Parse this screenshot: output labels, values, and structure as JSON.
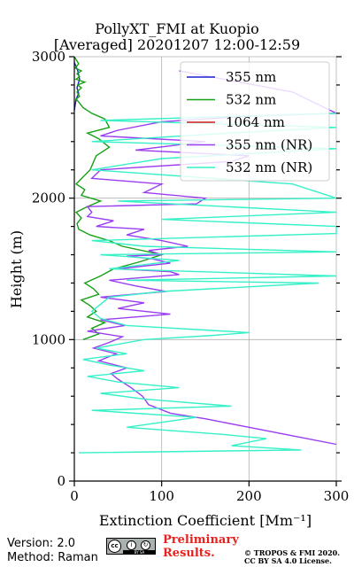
{
  "title": {
    "line1": "PollyXT_FMI at Kuopio",
    "line2": "[Averaged] 20201207 12:00-12:59"
  },
  "footer": {
    "version": "Version: 2.0",
    "method": "Method: Raman",
    "preliminary": [
      "Preliminary",
      "Results."
    ],
    "copyright": [
      "© TROPOS & FMI 2020.",
      "CC BY SA 4.0 License."
    ],
    "license_logo": "cc-by-sa-logo",
    "license_logo_text": "BY   SA",
    "preliminary_color": "#e8211e"
  },
  "chart_data": {
    "type": "line",
    "xlabel": "Extinction Coefficient [Mm⁻¹]",
    "ylabel": "Height (m)",
    "xlim": [
      0,
      300
    ],
    "ylim": [
      0,
      3000
    ],
    "xticks": [
      0,
      100,
      200,
      300
    ],
    "yticks": [
      0,
      1000,
      2000,
      3000
    ],
    "grid": true,
    "legend_position": "top-right",
    "series": [
      {
        "name": "355 nm",
        "color": "#1f1fd2",
        "x": [
          0,
          2,
          5,
          3,
          6,
          4,
          0
        ],
        "y": [
          2620,
          2700,
          2740,
          2780,
          2840,
          2900,
          2960
        ]
      },
      {
        "name": "532 nm",
        "color": "#16a016",
        "x": [
          10,
          28,
          20,
          35,
          15,
          25,
          18,
          8,
          28,
          22,
          12,
          30,
          45,
          75,
          100,
          55,
          40,
          18,
          5,
          3,
          8,
          2,
          15,
          30,
          8,
          12,
          2,
          18,
          25,
          40,
          28,
          15,
          40,
          35,
          20,
          10,
          5,
          2,
          6,
          3,
          8,
          4,
          12,
          2,
          6,
          3,
          8,
          1,
          5,
          0
        ],
        "y": [
          1000,
          1040,
          1080,
          1120,
          1160,
          1200,
          1240,
          1280,
          1320,
          1360,
          1400,
          1450,
          1500,
          1550,
          1600,
          1660,
          1700,
          1740,
          1780,
          1820,
          1860,
          1900,
          1940,
          1980,
          2020,
          2060,
          2100,
          2200,
          2300,
          2360,
          2420,
          2460,
          2500,
          2560,
          2600,
          2640,
          2680,
          2700,
          2720,
          2750,
          2780,
          2800,
          2820,
          2840,
          2860,
          2880,
          2900,
          2920,
          2950,
          3000
        ]
      },
      {
        "name": "1064 nm",
        "color": "#cc1c1c",
        "x": [],
        "y": []
      },
      {
        "name": "355 nm (NR)",
        "color": "#9a3cf0",
        "x": [
          300,
          250,
          200,
          150,
          110,
          85,
          78,
          65,
          50,
          42,
          60,
          28,
          48,
          22,
          40,
          55,
          15,
          58,
          30,
          110,
          50,
          80,
          30,
          105,
          70,
          40,
          120,
          110,
          50,
          110,
          90,
          60,
          100,
          85,
          130,
          100,
          60,
          80,
          25,
          45,
          15,
          20,
          15,
          140,
          150,
          80,
          100,
          20,
          30,
          180,
          200,
          70,
          150,
          30,
          50,
          100,
          200,
          300,
          250,
          120
        ],
        "y": [
          260,
          320,
          380,
          440,
          480,
          540,
          600,
          660,
          720,
          760,
          800,
          850,
          900,
          940,
          980,
          1020,
          1060,
          1100,
          1140,
          1180,
          1220,
          1260,
          1300,
          1340,
          1380,
          1420,
          1460,
          1480,
          1500,
          1540,
          1570,
          1590,
          1600,
          1630,
          1660,
          1700,
          1740,
          1780,
          1800,
          1840,
          1870,
          1900,
          1940,
          1960,
          2000,
          2040,
          2100,
          2140,
          2200,
          2260,
          2300,
          2340,
          2400,
          2440,
          2480,
          2540,
          2580,
          2600,
          2750,
          2900
        ]
      },
      {
        "name": "532 nm (NR)",
        "color": "#36f0c8",
        "x": [
          5,
          260,
          180,
          220,
          170,
          60,
          140,
          20,
          180,
          80,
          30,
          120,
          50,
          15,
          80,
          40,
          10,
          60,
          25,
          80,
          160,
          200,
          60,
          30,
          20,
          40,
          100,
          280,
          60,
          300,
          40,
          120,
          30,
          300,
          80,
          20,
          300,
          300,
          100,
          300,
          50,
          300,
          250,
          20,
          100,
          300,
          20,
          150,
          300,
          30,
          300
        ],
        "y": [
          200,
          220,
          250,
          300,
          330,
          380,
          450,
          500,
          530,
          580,
          620,
          660,
          700,
          740,
          780,
          820,
          860,
          900,
          940,
          1000,
          1030,
          1050,
          1100,
          1150,
          1200,
          1300,
          1340,
          1400,
          1420,
          1450,
          1500,
          1560,
          1600,
          1620,
          1660,
          1700,
          1750,
          1800,
          1850,
          1900,
          1980,
          2000,
          2100,
          2200,
          2280,
          2350,
          2400,
          2450,
          2500,
          2550,
          2600
        ]
      }
    ]
  }
}
